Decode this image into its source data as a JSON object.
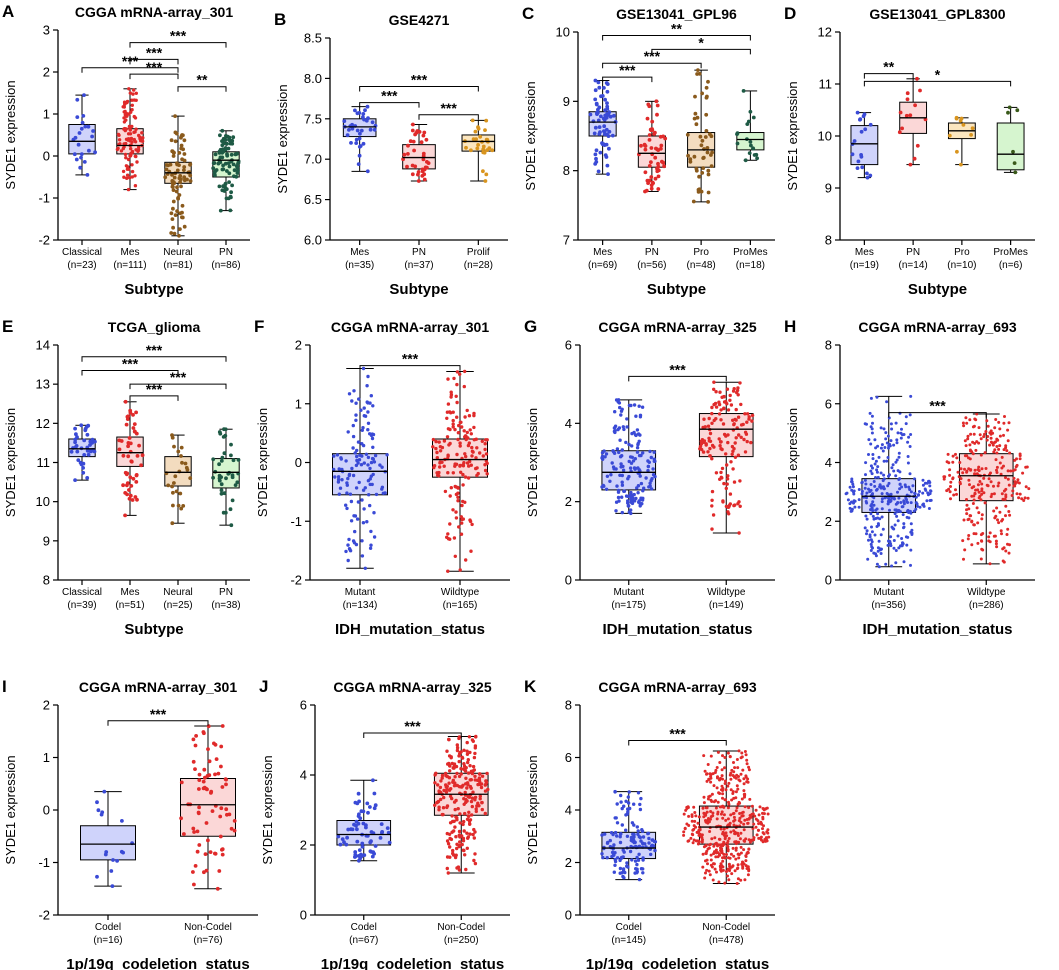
{
  "colors": {
    "blue": "#3a4ad6",
    "blue_fill": "#cfd3fb",
    "red": "#e02a2a",
    "red_fill": "#fbd7d7",
    "brown": "#8a5a1c",
    "brown_fill": "#f3dcbf",
    "green": "#1e5a45",
    "green_fill": "#d6f5cf",
    "orange": "#d9951f",
    "orange_fill": "#fbe6bf",
    "olive": "#3a5a1a"
  },
  "chart_data": [
    {
      "type": "box",
      "label": "A",
      "title": "CGGA mRNA-array_301",
      "xlabel": "Subtype",
      "ylabel": "SYDE1 expression",
      "ylim": [
        -2,
        3
      ],
      "yticks": [
        -2,
        -1,
        0,
        1,
        2,
        3
      ],
      "categories": [
        {
          "name": "Classical",
          "n": "(n=23)",
          "npts": 23,
          "color": "blue",
          "fill": "blue_fill",
          "q": [
            -0.45,
            0.05,
            0.35,
            0.75,
            1.45
          ]
        },
        {
          "name": "Mes",
          "n": "(n=111)",
          "npts": 111,
          "color": "red",
          "fill": "red_fill",
          "q": [
            -0.8,
            0.05,
            0.25,
            0.65,
            1.6
          ]
        },
        {
          "name": "Neural",
          "n": "(n=81)",
          "npts": 81,
          "color": "brown",
          "fill": "brown_fill",
          "q": [
            -1.9,
            -0.65,
            -0.4,
            -0.15,
            0.95
          ]
        },
        {
          "name": "PN",
          "n": "(n=86)",
          "npts": 86,
          "color": "green",
          "fill": "green_fill",
          "q": [
            -1.3,
            -0.5,
            -0.1,
            0.1,
            0.6
          ]
        }
      ],
      "sig": [
        {
          "a": 1,
          "b": 3,
          "y": 2.7,
          "t": "***"
        },
        {
          "a": 1,
          "b": 2,
          "y": 2.3,
          "t": "***"
        },
        {
          "a": 1,
          "b": 2,
          "y": 1.95,
          "t": "***"
        },
        {
          "a": 0,
          "b": 2,
          "y": 2.1,
          "t": "***"
        },
        {
          "a": 2,
          "b": 3,
          "y": 1.65,
          "t": "**"
        }
      ]
    },
    {
      "type": "box",
      "label": "B",
      "title": "GSE4271",
      "xlabel": "Subtype",
      "ylabel": "SYDE1 expression",
      "ylim": [
        6.0,
        8.5
      ],
      "yticks": [
        6.0,
        6.5,
        7.0,
        7.5,
        8.0,
        8.5
      ],
      "yfmt": 1,
      "categories": [
        {
          "name": "Mes",
          "n": "(n=35)",
          "npts": 35,
          "color": "blue",
          "fill": "blue_fill",
          "q": [
            6.85,
            7.28,
            7.4,
            7.5,
            7.65
          ]
        },
        {
          "name": "PN",
          "n": "(n=37)",
          "npts": 37,
          "color": "red",
          "fill": "red_fill",
          "q": [
            6.73,
            6.88,
            7.02,
            7.18,
            7.43
          ]
        },
        {
          "name": "Prolif",
          "n": "(n=28)",
          "npts": 28,
          "color": "orange",
          "fill": "orange_fill",
          "q": [
            6.73,
            7.1,
            7.22,
            7.3,
            7.48
          ]
        }
      ],
      "sig": [
        {
          "a": 0,
          "b": 2,
          "y": 7.9,
          "t": "***"
        },
        {
          "a": 0,
          "b": 1,
          "y": 7.7,
          "t": "***"
        },
        {
          "a": 1,
          "b": 2,
          "y": 7.55,
          "t": "***"
        }
      ]
    },
    {
      "type": "box",
      "label": "C",
      "title": "GSE13041_GPL96",
      "xlabel": "Subtype",
      "ylabel": "SYDE1 expression",
      "ylim": [
        7,
        10
      ],
      "yticks": [
        7,
        8,
        9,
        10
      ],
      "categories": [
        {
          "name": "Mes",
          "n": "(n=69)",
          "npts": 69,
          "color": "blue",
          "fill": "blue_fill",
          "q": [
            7.95,
            8.5,
            8.7,
            8.85,
            9.3
          ]
        },
        {
          "name": "PN",
          "n": "(n=56)",
          "npts": 56,
          "color": "red",
          "fill": "red_fill",
          "q": [
            7.7,
            8.05,
            8.25,
            8.5,
            9.0
          ]
        },
        {
          "name": "Pro",
          "n": "(n=48)",
          "npts": 48,
          "color": "brown",
          "fill": "brown_fill",
          "q": [
            7.55,
            8.05,
            8.3,
            8.55,
            9.45
          ]
        },
        {
          "name": "ProMes",
          "n": "(n=18)",
          "npts": 18,
          "color": "green",
          "fill": "green_fill",
          "q": [
            8.15,
            8.3,
            8.45,
            8.55,
            9.15
          ]
        }
      ],
      "sig": [
        {
          "a": 0,
          "b": 3,
          "y": 9.95,
          "t": "**"
        },
        {
          "a": 1,
          "b": 3,
          "y": 9.75,
          "t": "*"
        },
        {
          "a": 0,
          "b": 2,
          "y": 9.55,
          "t": "***"
        },
        {
          "a": 0,
          "b": 1,
          "y": 9.35,
          "t": "***"
        }
      ]
    },
    {
      "type": "box",
      "label": "D",
      "title": "GSE13041_GPL8300",
      "xlabel": "Subtype",
      "ylabel": "SYDE1 expression",
      "ylim": [
        8,
        12
      ],
      "yticks": [
        8,
        9,
        10,
        11,
        12
      ],
      "categories": [
        {
          "name": "Mes",
          "n": "(n=19)",
          "npts": 19,
          "color": "blue",
          "fill": "blue_fill",
          "q": [
            9.2,
            9.45,
            9.85,
            10.2,
            10.45
          ]
        },
        {
          "name": "PN",
          "n": "(n=14)",
          "npts": 14,
          "color": "red",
          "fill": "red_fill",
          "q": [
            9.45,
            10.05,
            10.35,
            10.65,
            11.1
          ]
        },
        {
          "name": "Pro",
          "n": "(n=10)",
          "npts": 10,
          "color": "orange",
          "fill": "orange_fill",
          "q": [
            9.45,
            9.95,
            10.1,
            10.25,
            10.35
          ]
        },
        {
          "name": "ProMes",
          "n": "(n=6)",
          "npts": 6,
          "color": "olive",
          "fill": "green_fill",
          "q": [
            9.3,
            9.35,
            9.65,
            10.25,
            10.55
          ]
        }
      ],
      "sig": [
        {
          "a": 0,
          "b": 1,
          "y": 11.2,
          "t": "**"
        },
        {
          "a": 0,
          "b": 3,
          "y": 11.05,
          "t": "*"
        }
      ]
    },
    {
      "type": "box",
      "label": "E",
      "title": "TCGA_glioma",
      "xlabel": "Subtype",
      "ylabel": "SYDE1 expression",
      "ylim": [
        8,
        14
      ],
      "yticks": [
        8,
        9,
        10,
        11,
        12,
        13,
        14
      ],
      "categories": [
        {
          "name": "Classical",
          "n": "(n=39)",
          "npts": 39,
          "color": "blue",
          "fill": "blue_fill",
          "q": [
            10.55,
            11.15,
            11.35,
            11.6,
            11.95
          ]
        },
        {
          "name": "Mes",
          "n": "(n=51)",
          "npts": 51,
          "color": "red",
          "fill": "red_fill",
          "q": [
            9.65,
            10.9,
            11.25,
            11.65,
            12.55
          ]
        },
        {
          "name": "Neural",
          "n": "(n=25)",
          "npts": 25,
          "color": "brown",
          "fill": "brown_fill",
          "q": [
            9.45,
            10.4,
            10.75,
            11.15,
            11.7
          ]
        },
        {
          "name": "PN",
          "n": "(n=38)",
          "npts": 38,
          "color": "green",
          "fill": "green_fill",
          "q": [
            9.4,
            10.35,
            10.75,
            11.1,
            11.85
          ]
        }
      ],
      "sig": [
        {
          "a": 0,
          "b": 3,
          "y": 13.7,
          "t": "***"
        },
        {
          "a": 0,
          "b": 2,
          "y": 13.35,
          "t": "***"
        },
        {
          "a": 1,
          "b": 3,
          "y": 13.0,
          "t": "***"
        },
        {
          "a": 1,
          "b": 2,
          "y": 12.7,
          "t": "***"
        }
      ]
    },
    {
      "type": "box",
      "label": "F",
      "title": "CGGA mRNA-array_301",
      "xlabel": "IDH_mutation_status",
      "ylabel": "SYDE1 expression",
      "ylim": [
        -2,
        2
      ],
      "yticks": [
        -2,
        -1,
        0,
        1,
        2
      ],
      "categories": [
        {
          "name": "Mutant",
          "n": "(n=134)",
          "npts": 134,
          "color": "blue",
          "fill": "blue_fill",
          "q": [
            -1.8,
            -0.55,
            -0.15,
            0.15,
            1.6
          ]
        },
        {
          "name": "Wildtype",
          "n": "(n=165)",
          "npts": 165,
          "color": "red",
          "fill": "red_fill",
          "q": [
            -1.85,
            -0.25,
            0.05,
            0.4,
            1.55
          ]
        }
      ],
      "sig": [
        {
          "a": 0,
          "b": 1,
          "y": 1.65,
          "t": "***"
        }
      ]
    },
    {
      "type": "box",
      "label": "G",
      "title": "CGGA mRNA-array_325",
      "xlabel": "IDH_mutation_status",
      "ylabel": "SYDE1 expression",
      "ylim": [
        0,
        6
      ],
      "yticks": [
        0,
        2,
        4,
        6
      ],
      "categories": [
        {
          "name": "Mutant",
          "n": "(n=175)",
          "npts": 175,
          "color": "blue",
          "fill": "blue_fill",
          "q": [
            1.7,
            2.3,
            2.75,
            3.3,
            4.6
          ]
        },
        {
          "name": "Wildtype",
          "n": "(n=149)",
          "npts": 149,
          "color": "red",
          "fill": "red_fill",
          "q": [
            1.2,
            3.15,
            3.85,
            4.25,
            5.05
          ]
        }
      ],
      "sig": [
        {
          "a": 0,
          "b": 1,
          "y": 5.2,
          "t": "***"
        }
      ]
    },
    {
      "type": "box",
      "label": "H",
      "title": "CGGA mRNA-array_693",
      "xlabel": "IDH_mutation_status",
      "ylabel": "SYDE1 expression",
      "ylim": [
        0,
        8
      ],
      "yticks": [
        0,
        2,
        4,
        6,
        8
      ],
      "categories": [
        {
          "name": "Mutant",
          "n": "(n=356)",
          "npts": 356,
          "color": "blue",
          "fill": "blue_fill",
          "q": [
            0.45,
            2.3,
            2.85,
            3.45,
            6.25
          ]
        },
        {
          "name": "Wildtype",
          "n": "(n=286)",
          "npts": 286,
          "color": "red",
          "fill": "red_fill",
          "q": [
            0.55,
            2.7,
            3.55,
            4.3,
            5.65
          ]
        }
      ],
      "sig": [
        {
          "a": 0,
          "b": 1,
          "y": 5.7,
          "t": "***"
        }
      ]
    },
    {
      "type": "box",
      "label": "I",
      "title": "CGGA mRNA-array_301",
      "xlabel": "1p/19q_codeletion_status",
      "ylabel": "SYDE1 expression",
      "ylim": [
        -2,
        2
      ],
      "yticks": [
        -2,
        -1,
        0,
        1,
        2
      ],
      "categories": [
        {
          "name": "Codel",
          "n": "(n=16)",
          "npts": 16,
          "color": "blue",
          "fill": "blue_fill",
          "q": [
            -1.45,
            -0.95,
            -0.65,
            -0.3,
            0.35
          ]
        },
        {
          "name": "Non-Codel",
          "n": "(n=76)",
          "npts": 76,
          "color": "red",
          "fill": "red_fill",
          "q": [
            -1.5,
            -0.5,
            0.1,
            0.6,
            1.6
          ]
        }
      ],
      "sig": [
        {
          "a": 0,
          "b": 1,
          "y": 1.7,
          "t": "***"
        }
      ]
    },
    {
      "type": "box",
      "label": "J",
      "title": "CGGA mRNA-array_325",
      "xlabel": "1p/19q_codeletion_status",
      "ylabel": "SYDE1 expression",
      "ylim": [
        0,
        6
      ],
      "yticks": [
        0,
        2,
        4,
        6
      ],
      "categories": [
        {
          "name": "Codel",
          "n": "(n=67)",
          "npts": 67,
          "color": "blue",
          "fill": "blue_fill",
          "q": [
            1.55,
            2.0,
            2.3,
            2.7,
            3.85
          ]
        },
        {
          "name": "Non-Codel",
          "n": "(n=250)",
          "npts": 250,
          "color": "red",
          "fill": "red_fill",
          "q": [
            1.2,
            2.85,
            3.45,
            4.05,
            5.1
          ]
        }
      ],
      "sig": [
        {
          "a": 0,
          "b": 1,
          "y": 5.2,
          "t": "***"
        }
      ]
    },
    {
      "type": "box",
      "label": "K",
      "title": "CGGA mRNA-array_693",
      "xlabel": "1p/19q_codeletion_status",
      "ylabel": "SYDE1 expression",
      "ylim": [
        0,
        8
      ],
      "yticks": [
        0,
        2,
        4,
        6,
        8
      ],
      "categories": [
        {
          "name": "Codel",
          "n": "(n=145)",
          "npts": 145,
          "color": "blue",
          "fill": "blue_fill",
          "q": [
            1.35,
            2.15,
            2.55,
            3.15,
            4.7
          ]
        },
        {
          "name": "Non-Codel",
          "n": "(n=478)",
          "npts": 478,
          "color": "red",
          "fill": "red_fill",
          "q": [
            1.2,
            2.7,
            3.35,
            4.15,
            6.25
          ]
        }
      ],
      "sig": [
        {
          "a": 0,
          "b": 1,
          "y": 6.65,
          "t": "***"
        }
      ]
    }
  ]
}
